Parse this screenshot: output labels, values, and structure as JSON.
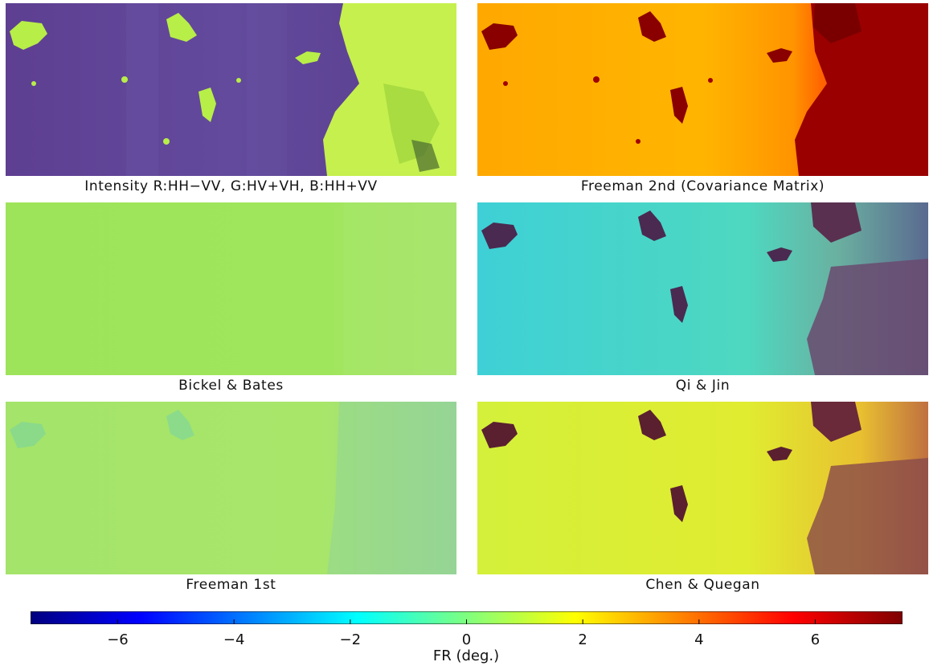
{
  "panels": [
    {
      "id": "intensity",
      "caption": "Intensity R:HH−VV, G:HV+VH, B:HH+VV",
      "base_color": "#5a4090",
      "patch_color": "#c2f04a",
      "stripe_color": "#6a52a0"
    },
    {
      "id": "freeman2",
      "caption": "Freeman 2nd (Covariance Matrix)",
      "base_color": "#ffb000",
      "patch_color": "#7a0000",
      "right_color": "#b80000"
    },
    {
      "id": "bickel",
      "caption": "Bickel & Bates",
      "base_color": "#9ee65a",
      "patch_color": "#8fe06a"
    },
    {
      "id": "qijin",
      "caption": "Qi & Jin",
      "base_color": "#3ed6c8",
      "patch_color": "#5a1a40",
      "right_color": "#5a7ab0"
    },
    {
      "id": "freeman1",
      "caption": "Freeman 1st",
      "base_color": "#a6e86a",
      "patch_color": "#5ad0b8"
    },
    {
      "id": "chen",
      "caption": "Chen & Quegan",
      "base_color": "#d6f03a",
      "patch_color": "#6a2030",
      "right_color": "#8a4040"
    }
  ],
  "colorbar": {
    "label": "FR (deg.)",
    "range": [
      -7.5,
      7.5
    ],
    "ticks": [
      {
        "value": -6,
        "label": "−6"
      },
      {
        "value": -4,
        "label": "−4"
      },
      {
        "value": -2,
        "label": "−2"
      },
      {
        "value": 0,
        "label": "0"
      },
      {
        "value": 2,
        "label": "2"
      },
      {
        "value": 4,
        "label": "4"
      },
      {
        "value": 6,
        "label": "6"
      }
    ],
    "colormap": [
      "#00007f",
      "#0000ff",
      "#007fff",
      "#00ffff",
      "#7fff7f",
      "#ffff00",
      "#ff7f00",
      "#ff0000",
      "#7f0000"
    ]
  }
}
